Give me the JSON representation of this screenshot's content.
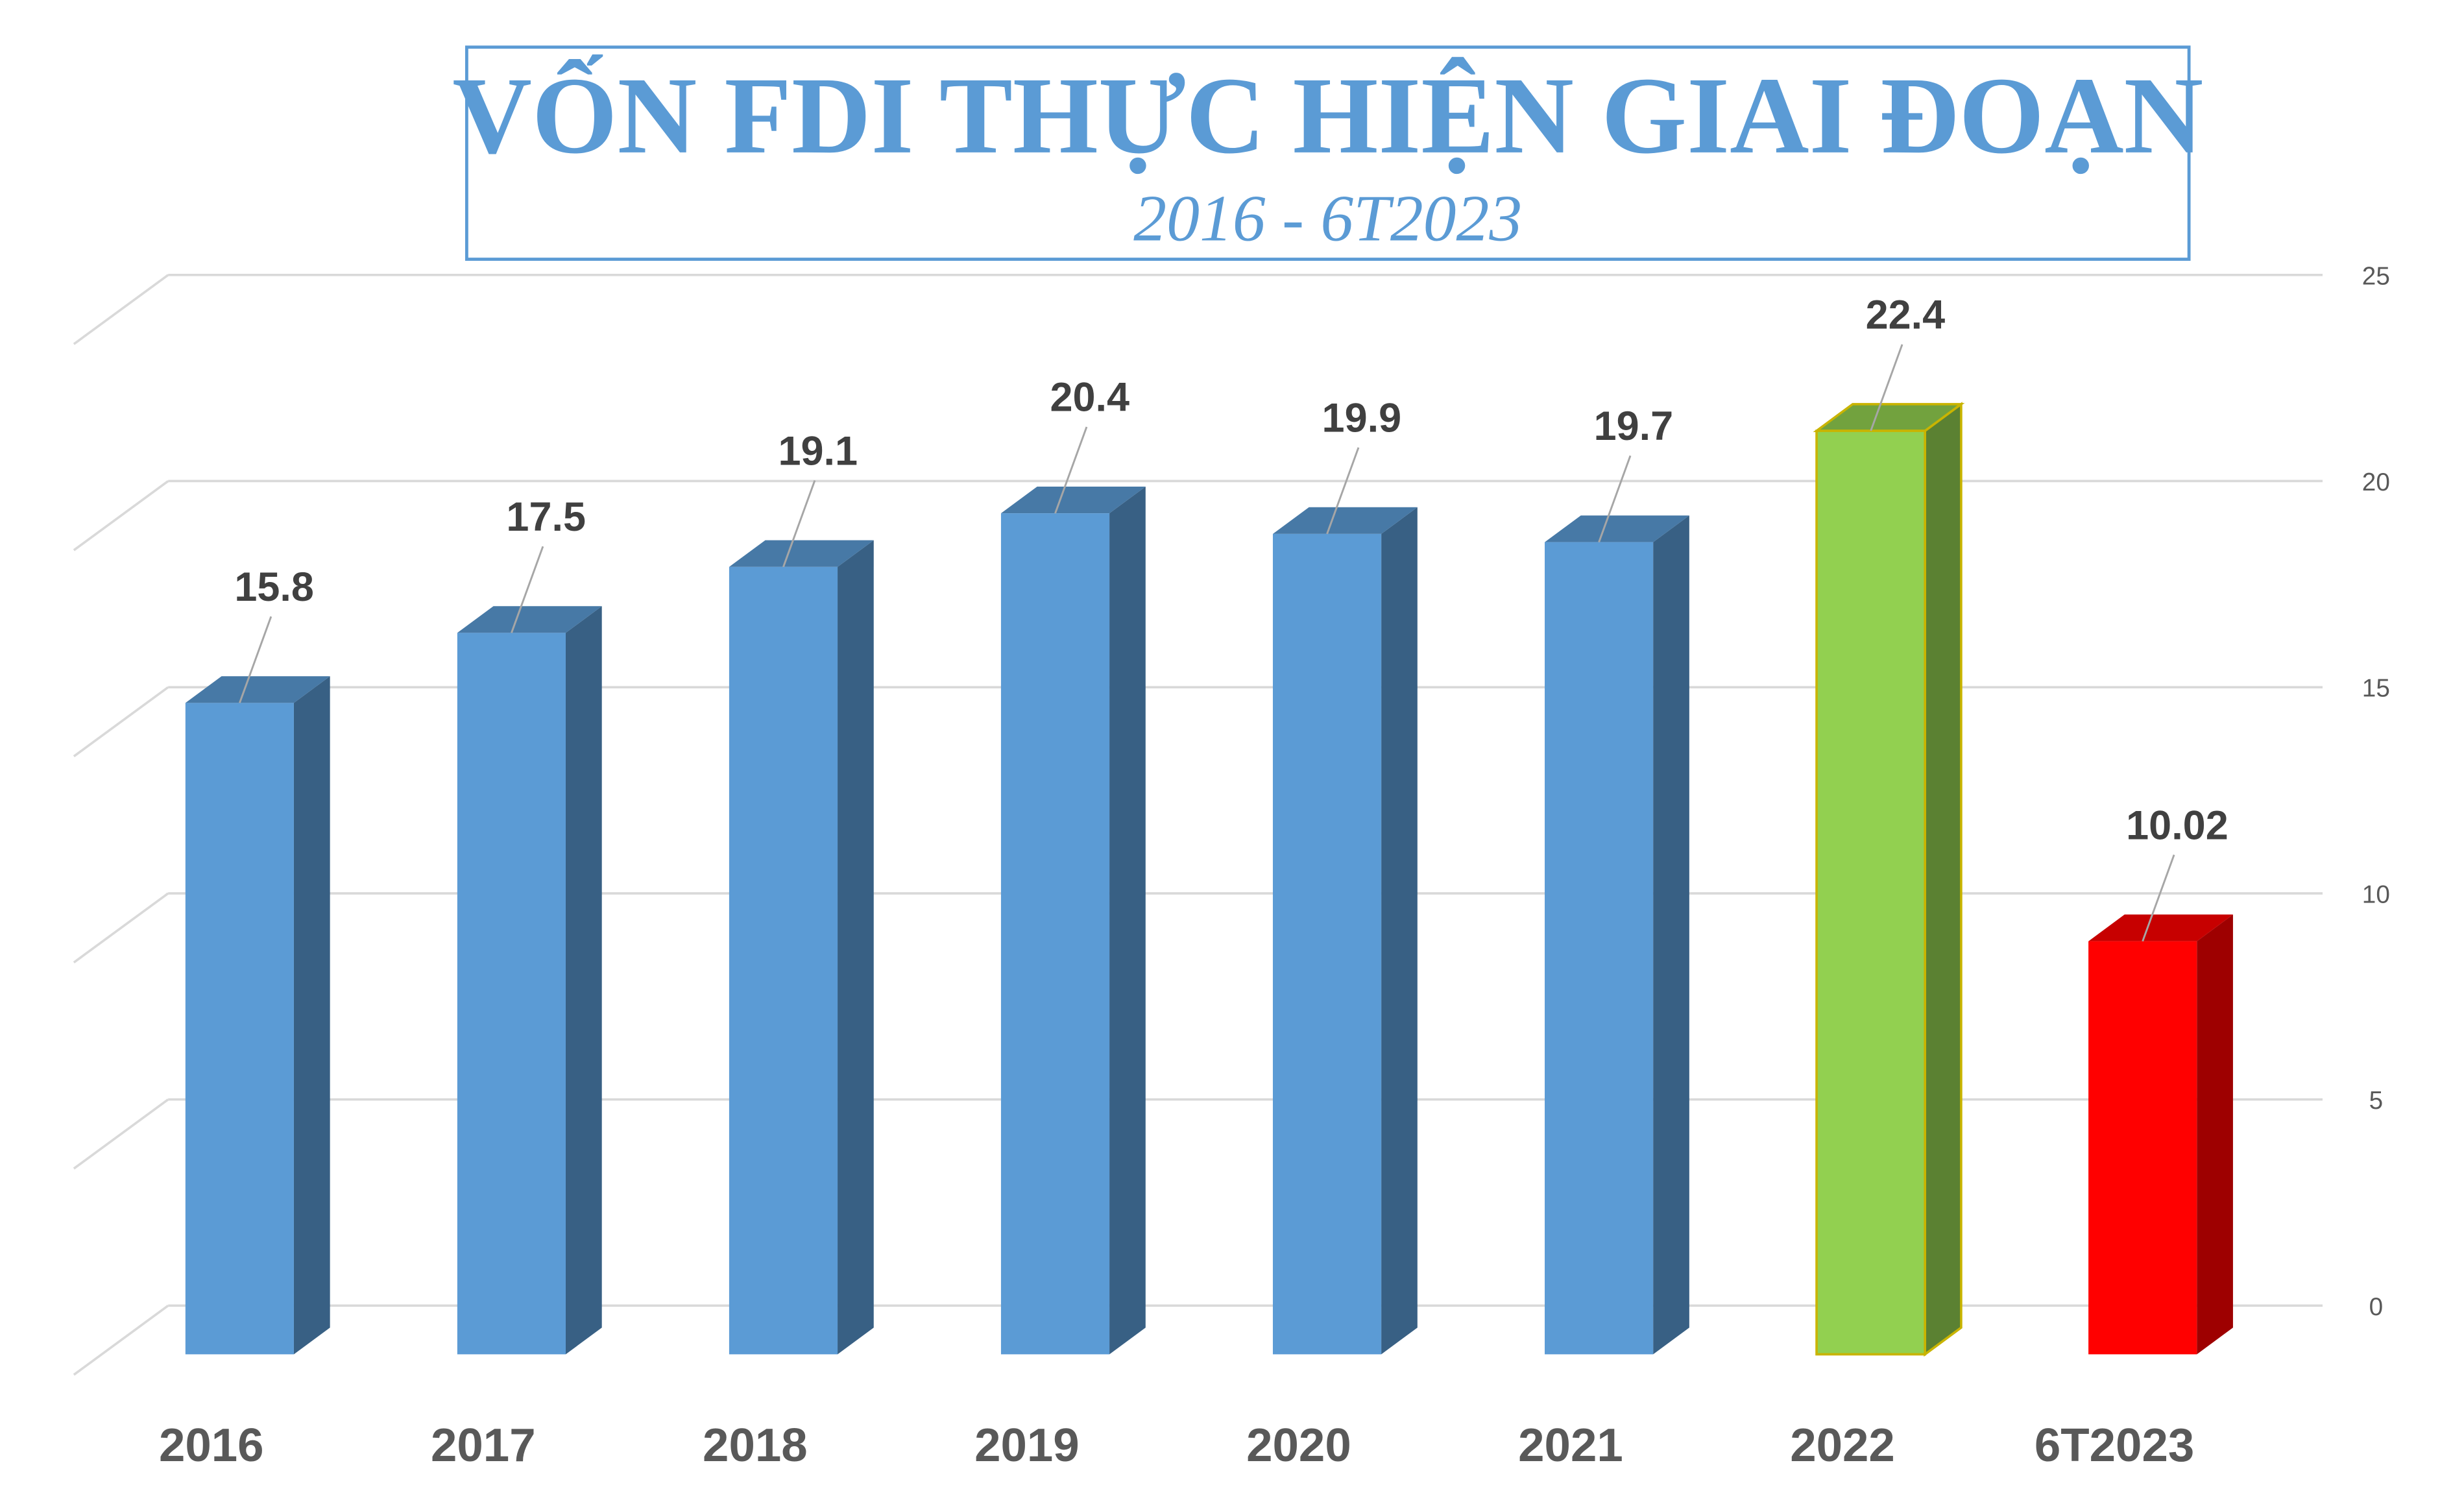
{
  "chart_data": {
    "type": "bar3d",
    "title": "VỐN FDI THỰC HIỆN GIAI ĐOẠN",
    "subtitle": "2016 - 6T2023",
    "categories": [
      "2016",
      "2017",
      "2018",
      "2019",
      "2020",
      "2021",
      "2022",
      "6T2023"
    ],
    "values": [
      15.8,
      17.5,
      19.1,
      20.4,
      19.9,
      19.7,
      22.4,
      10.02
    ],
    "colors": [
      "#5b9bd5",
      "#5b9bd5",
      "#5b9bd5",
      "#5b9bd5",
      "#5b9bd5",
      "#5b9bd5",
      "#92d050",
      "#ff0000"
    ],
    "ylim": [
      0,
      25
    ],
    "yticks": [
      0,
      5,
      10,
      15,
      20,
      25
    ],
    "grid": true,
    "y_axis_side": "right"
  }
}
